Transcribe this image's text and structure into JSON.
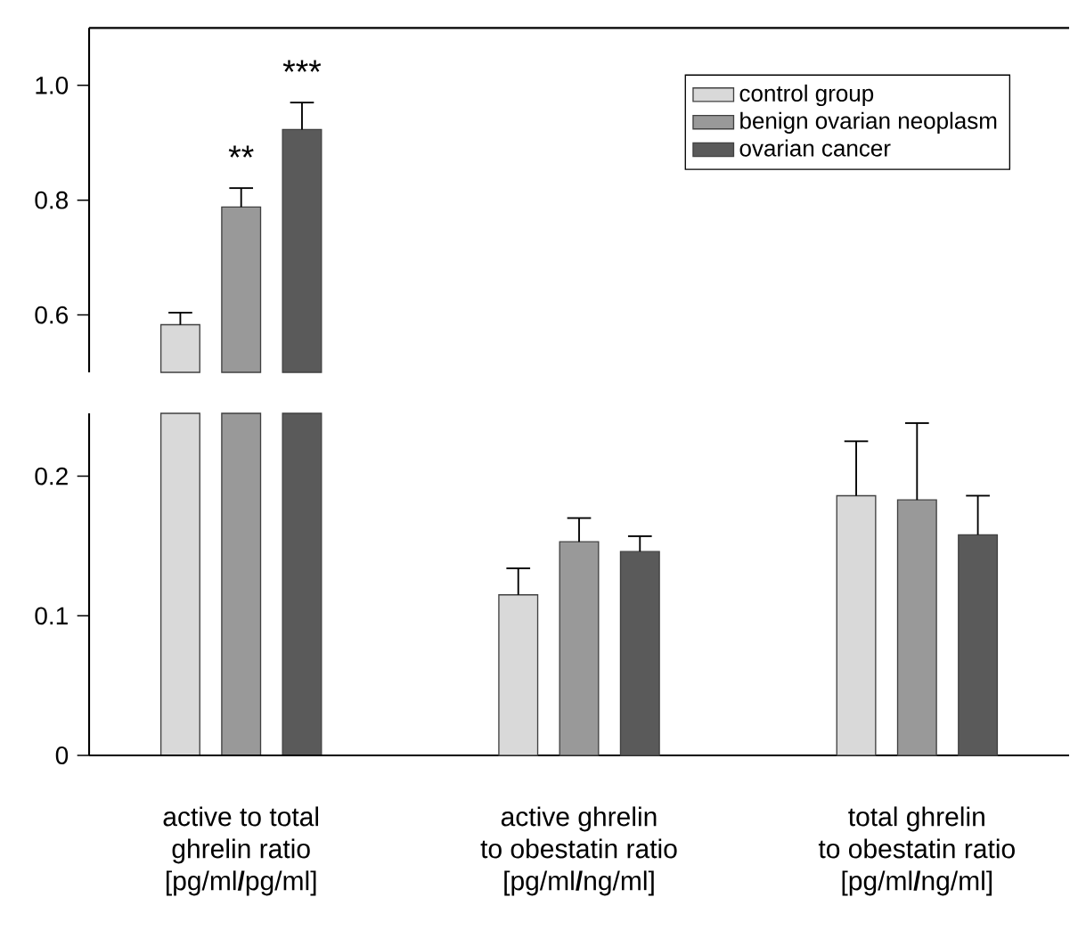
{
  "chart_data": [
    {
      "type": "bar",
      "categories": [
        null,
        null,
        null
      ],
      "series": [
        {
          "name": "control group",
          "color": "#d9d9d9",
          "values": [
            0.583,
            null,
            null
          ],
          "errors": [
            [
              0.583,
              0.604
            ],
            null,
            null
          ]
        },
        {
          "name": "benign ovarian neoplasm",
          "color": "#999999",
          "values": [
            0.788,
            null,
            null
          ],
          "errors": [
            [
              0.788,
              0.821
            ],
            null,
            null
          ]
        },
        {
          "name": "ovarian cancer",
          "color": "#5a5a5a",
          "values": [
            0.923,
            null,
            null
          ],
          "errors": [
            [
              0.923,
              0.97
            ],
            null,
            null
          ]
        }
      ],
      "ylim": [
        0.5,
        1.1
      ],
      "yticks": [
        {
          "value": 0.6,
          "label": "0.6"
        },
        {
          "value": 0.8,
          "label": "0.8"
        },
        {
          "value": 1.0,
          "label": "1.0"
        }
      ],
      "tick_labels": "y",
      "legend": "top right",
      "annotations": [
        "**",
        "***"
      ]
    },
    {
      "type": "bar",
      "categories": [
        "active to total\nghrelin ratio\n[pg/ml**/**pg/ml]",
        "active ghrelin\nto obestatin ratio\n[pg/ml**/**ng/ml]",
        "total ghrelin\nto obestatin ratio\n[pg/ml**/**ng/ml]"
      ],
      "series": [
        {
          "color": "#d9d9d9",
          "values": [
            null,
            0.115,
            0.186
          ],
          "errors": [
            null,
            [
              0.115,
              0.134
            ],
            [
              0.186,
              0.225
            ]
          ]
        },
        {
          "color": "#999999",
          "values": [
            null,
            0.153,
            0.183
          ],
          "errors": [
            null,
            [
              0.153,
              0.17
            ],
            [
              0.183,
              0.238
            ]
          ]
        },
        {
          "color": "#5a5a5a",
          "values": [
            null,
            0.146,
            0.158
          ],
          "errors": [
            null,
            [
              0.146,
              0.157
            ],
            [
              0.158,
              0.186
            ]
          ]
        }
      ],
      "ylim": [
        0,
        0.245
      ],
      "yticks": [
        0,
        0.1,
        0.2
      ]
    }
  ]
}
